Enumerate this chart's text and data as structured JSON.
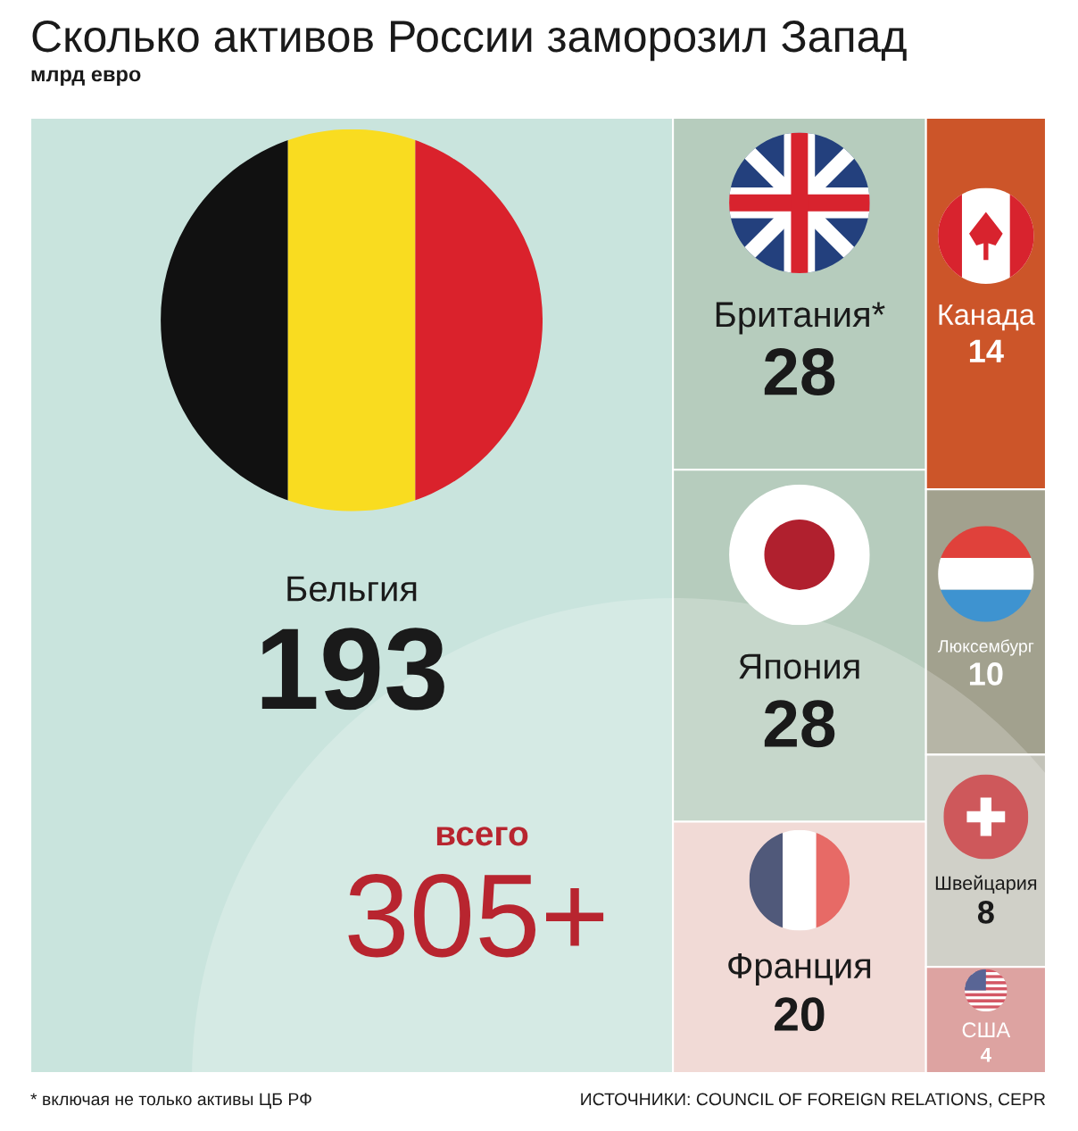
{
  "chart_data": {
    "type": "other",
    "title": "Сколько активов России заморозил Запад",
    "subtitle": "млрд евро",
    "categories": [
      "Бельгия",
      "Британия*",
      "Япония",
      "Франция",
      "Канада",
      "Люксембург",
      "Швейцария",
      "США"
    ],
    "values": [
      193,
      28,
      28,
      20,
      14,
      10,
      8,
      4
    ],
    "colors": [
      "#c9e4dd",
      "#b6ccbd",
      "#b6ccbd",
      "#edd0cb",
      "#cc5529",
      "#a2a18e",
      "#c3c3b9",
      "#d48987"
    ],
    "data_labels": true,
    "annotations": [
      "всего",
      "305+",
      "* включая не только активы ЦБ РФ",
      "ИСТОЧНИКИ: COUNCIL OF FOREIGN RELATIONS, CEPR"
    ]
  }
}
